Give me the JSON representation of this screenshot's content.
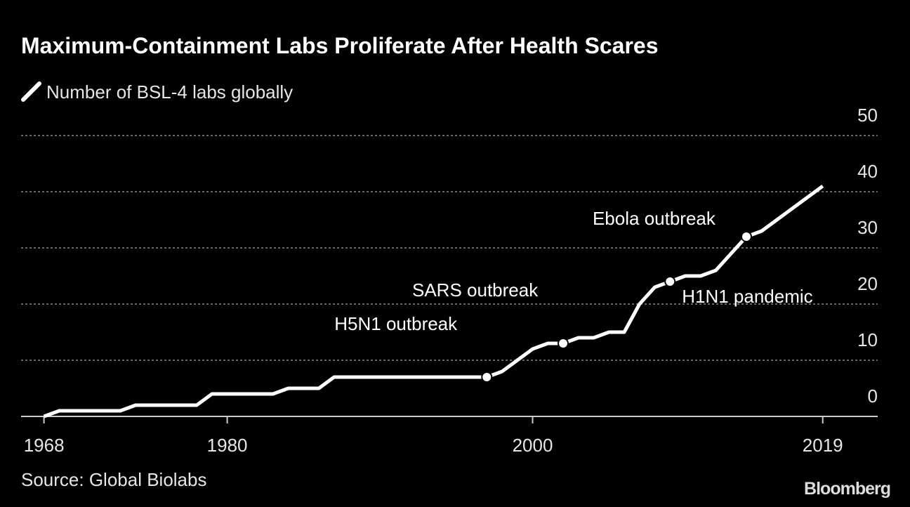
{
  "chart_data": {
    "type": "line",
    "title": "Maximum-Containment Labs Proliferate After Health Scares",
    "source": "Source: Global Biolabs",
    "brand": "Bloomberg",
    "series": [
      {
        "name": "Number of BSL-4 labs globally",
        "color": "#ffffff",
        "x": [
          1968,
          1969,
          1970,
          1971,
          1972,
          1973,
          1974,
          1975,
          1976,
          1977,
          1978,
          1979,
          1980,
          1981,
          1982,
          1983,
          1984,
          1985,
          1986,
          1987,
          1988,
          1989,
          1990,
          1991,
          1992,
          1993,
          1994,
          1995,
          1996,
          1997,
          1998,
          1999,
          2000,
          2001,
          2002,
          2003,
          2004,
          2005,
          2006,
          2007,
          2008,
          2009,
          2010,
          2011,
          2012,
          2013,
          2014,
          2015,
          2016,
          2017,
          2018,
          2019
        ],
        "values": [
          0,
          1,
          1,
          1,
          1,
          1,
          2,
          2,
          2,
          2,
          2,
          4,
          4,
          4,
          4,
          4,
          5,
          5,
          5,
          7,
          7,
          7,
          7,
          7,
          7,
          7,
          7,
          7,
          7,
          7,
          8,
          10,
          12,
          13,
          13,
          14,
          14,
          15,
          15,
          20,
          23,
          24,
          25,
          25,
          26,
          29,
          32,
          33,
          35,
          37,
          39,
          41
        ]
      }
    ],
    "annotations": [
      {
        "text": "H5N1 outbreak",
        "x": 1997,
        "y": 7
      },
      {
        "text": "SARS outbreak",
        "x": 2002,
        "y": 13
      },
      {
        "text": "H1N1 pandemic",
        "x": 2009,
        "y": 24
      },
      {
        "text": "Ebola outbreak",
        "x": 2014,
        "y": 32
      }
    ],
    "xlim": [
      1966.5,
      2022.6
    ],
    "xticks": [
      1968,
      1980,
      2000,
      2019
    ],
    "ylim": [
      0,
      50
    ],
    "yticks": [
      0,
      10,
      20,
      30,
      40,
      50
    ],
    "grid": true
  }
}
